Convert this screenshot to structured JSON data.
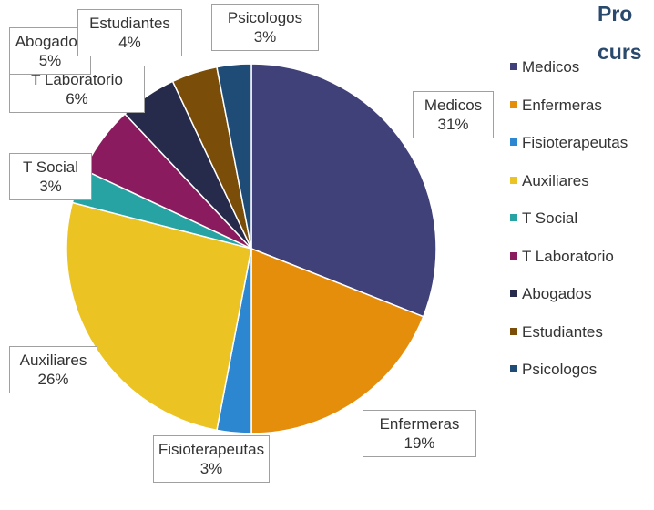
{
  "chart_data": {
    "type": "pie",
    "title_lines": [
      "Pro",
      "curs"
    ],
    "categories": [
      "Medicos",
      "Enfermeras",
      "Fisioterapeutas",
      "Auxiliares",
      "T Social",
      "T Laboratorio",
      "Abogados",
      "Estudiantes",
      "Psicologos"
    ],
    "values": [
      31,
      19,
      3,
      26,
      3,
      6,
      5,
      4,
      3
    ],
    "value_labels": [
      "31%",
      "19%",
      "3%",
      "26%",
      "3%",
      "6%",
      "5%",
      "4%",
      "3%"
    ],
    "colors": [
      "#3f4178",
      "#e58e0c",
      "#2c86d0",
      "#ebc322",
      "#27a3a3",
      "#8b1b5f",
      "#262a4b",
      "#7a4d08",
      "#1f4b77"
    ],
    "legend": "right"
  }
}
